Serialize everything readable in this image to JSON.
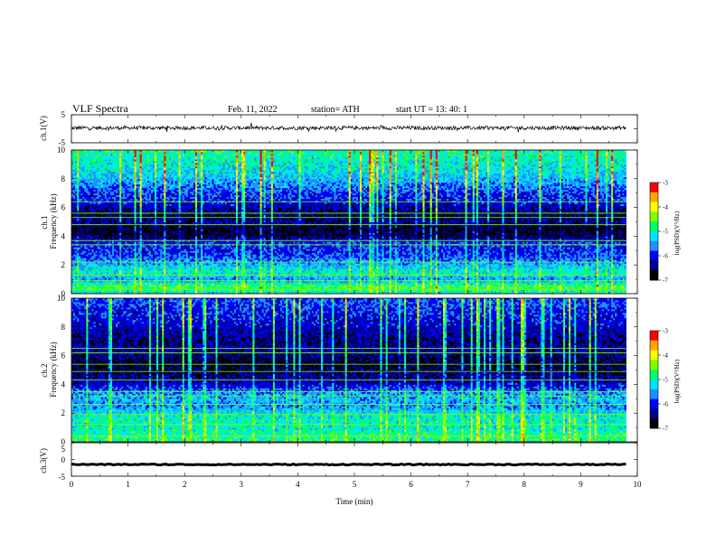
{
  "header": {
    "title": "VLF  Spectra",
    "date": "Feb. 11, 2022",
    "station": "station= ATH",
    "start_ut": "start  UT  =    13: 40: 1"
  },
  "colors": {
    "colormap": [
      "#000000",
      "#00008b",
      "#0000ff",
      "#1e90ff",
      "#00e5ff",
      "#00ff66",
      "#7fff00",
      "#ffff00",
      "#ffa500",
      "#ff0000",
      "#ffffff"
    ],
    "waveform": "#000000",
    "frame": "#000000"
  },
  "chart_data": [
    {
      "type": "line",
      "panel": "ch1-waveform",
      "ylabel": "ch.1(V)",
      "ylim": [
        -5,
        5
      ],
      "yticks": [
        "5",
        "-5"
      ],
      "xlim": [
        0,
        10
      ],
      "baseline": 0.3,
      "amplitude_range": [
        -1.5,
        1.5
      ]
    },
    {
      "type": "heatmap",
      "panel": "ch1-spectrogram",
      "ylabel": "ch.1\nFrequency  (kHz)",
      "ylabel_lines": [
        "ch.1",
        "Frequency  (kHz)"
      ],
      "ylim": [
        0,
        10
      ],
      "yticks": [
        "0",
        "2",
        "4",
        "6",
        "8",
        "10"
      ],
      "xlim": [
        0,
        10
      ],
      "data_end_min": 9.8,
      "colorbar": {
        "label": "log(PSD)(V²/Hz)",
        "range": [
          -7,
          -3
        ],
        "ticks": [
          "-3",
          "-4",
          "-5",
          "-6",
          "-7"
        ]
      },
      "band_profile_khz": [
        [
          0,
          -5.2
        ],
        [
          0.5,
          -4.6
        ],
        [
          1,
          -5.6
        ],
        [
          1.5,
          -5.0
        ],
        [
          2,
          -5.4
        ],
        [
          2.5,
          -5.8
        ],
        [
          3,
          -6.0
        ],
        [
          3.5,
          -5.9
        ],
        [
          4,
          -6.6
        ],
        [
          4.5,
          -6.8
        ],
        [
          5,
          -6.4
        ],
        [
          5.5,
          -6.6
        ],
        [
          6,
          -6.3
        ],
        [
          6.5,
          -6.0
        ],
        [
          7,
          -5.9
        ],
        [
          8,
          -5.4
        ],
        [
          9,
          -5.1
        ],
        [
          10,
          -4.9
        ]
      ],
      "narrowband_lines_khz": [
        0.3,
        0.9,
        1.3,
        2.2,
        3.4,
        3.7,
        4.8,
        5.3,
        5.6,
        6.4
      ]
    },
    {
      "type": "heatmap",
      "panel": "ch2-spectrogram",
      "ylabel": "ch.2\nFrequency  (kHz)",
      "ylabel_lines": [
        "ch.2",
        "Frequency  (kHz)"
      ],
      "ylim": [
        0,
        10
      ],
      "yticks": [
        "0",
        "2",
        "4",
        "6",
        "8",
        "10"
      ],
      "xlim": [
        0,
        10
      ],
      "data_end_min": 9.8,
      "colorbar": {
        "label": "log(PSD)(V²/Hz)",
        "range": [
          -7,
          -3
        ],
        "ticks": [
          "-3",
          "-4",
          "-5",
          "-6",
          "-7"
        ]
      },
      "band_profile_khz": [
        [
          0,
          -4.8
        ],
        [
          0.5,
          -4.9
        ],
        [
          1,
          -5.1
        ],
        [
          1.5,
          -5.0
        ],
        [
          2,
          -5.2
        ],
        [
          2.5,
          -5.6
        ],
        [
          3,
          -5.4
        ],
        [
          3.5,
          -5.6
        ],
        [
          4,
          -6.2
        ],
        [
          4.5,
          -6.4
        ],
        [
          5,
          -6.6
        ],
        [
          5.5,
          -6.7
        ],
        [
          6,
          -6.5
        ],
        [
          6.5,
          -6.3
        ],
        [
          7,
          -6.5
        ],
        [
          8,
          -6.2
        ],
        [
          9,
          -6.0
        ],
        [
          10,
          -5.8
        ]
      ],
      "narrowband_lines_khz": [
        0.4,
        1.2,
        1.9,
        2.6,
        3.2,
        3.5,
        4.3,
        4.9,
        5.4,
        6.2,
        6.5
      ]
    },
    {
      "type": "line",
      "panel": "ch3-waveform",
      "ylabel": "ch.3(V)",
      "ylim": [
        -5,
        5
      ],
      "yticks": [
        "5",
        "0",
        "-5"
      ],
      "xlim": [
        0,
        10
      ],
      "xlabel": "Time  (min)",
      "xticks": [
        "0",
        "1",
        "2",
        "3",
        "4",
        "5",
        "6",
        "7",
        "8",
        "9",
        "10"
      ],
      "baseline": -1.5,
      "amplitude_range": [
        -0.15,
        0.15
      ]
    }
  ]
}
